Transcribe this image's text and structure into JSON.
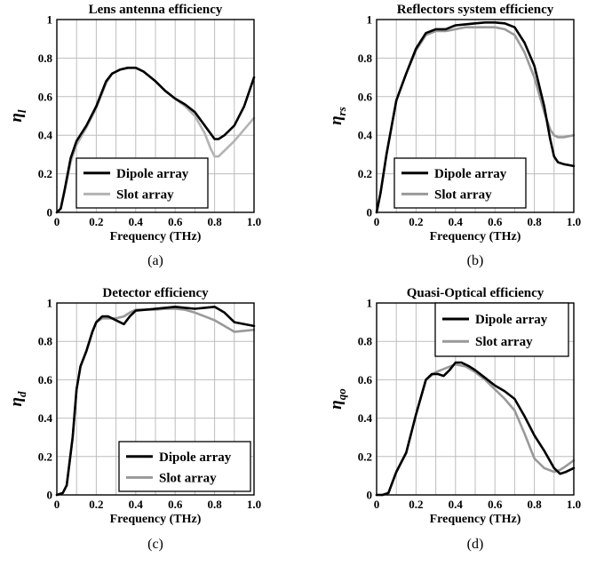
{
  "chart_data": [
    {
      "type": "line",
      "title": "Lens antenna efficiency",
      "xlabel": "Frequency (THz)",
      "ylabel": {
        "base": "η",
        "sub": "l"
      },
      "caption": "(a)",
      "xlim": [
        0,
        1
      ],
      "ylim": [
        0,
        1
      ],
      "xticks": [
        "0",
        "0.2",
        "0.4",
        "0.6",
        "0.8",
        "1.0"
      ],
      "yticks": [
        "0",
        "0.2",
        "0.4",
        "0.6",
        "0.8",
        "1"
      ],
      "grid": true,
      "legend_position": "bottom-left",
      "series": [
        {
          "name": "Dipole array",
          "color": "#000000",
          "x": [
            0,
            0.02,
            0.04,
            0.07,
            0.1,
            0.15,
            0.2,
            0.25,
            0.28,
            0.32,
            0.36,
            0.4,
            0.44,
            0.5,
            0.55,
            0.6,
            0.65,
            0.7,
            0.75,
            0.8,
            0.82,
            0.85,
            0.9,
            0.95,
            1.0
          ],
          "y": [
            0,
            0.02,
            0.12,
            0.28,
            0.37,
            0.45,
            0.55,
            0.68,
            0.72,
            0.74,
            0.75,
            0.75,
            0.73,
            0.68,
            0.63,
            0.59,
            0.56,
            0.52,
            0.45,
            0.38,
            0.38,
            0.4,
            0.45,
            0.55,
            0.7
          ]
        },
        {
          "name": "Slot array",
          "color": "#b3b3b3",
          "x": [
            0,
            0.02,
            0.04,
            0.07,
            0.1,
            0.15,
            0.2,
            0.25,
            0.28,
            0.32,
            0.36,
            0.4,
            0.44,
            0.5,
            0.55,
            0.6,
            0.65,
            0.7,
            0.75,
            0.78,
            0.8,
            0.82,
            0.85,
            0.9,
            0.95,
            1.0
          ],
          "y": [
            0,
            0.02,
            0.11,
            0.26,
            0.35,
            0.44,
            0.54,
            0.67,
            0.72,
            0.74,
            0.75,
            0.75,
            0.73,
            0.68,
            0.63,
            0.59,
            0.55,
            0.5,
            0.41,
            0.33,
            0.29,
            0.29,
            0.32,
            0.37,
            0.43,
            0.49
          ]
        }
      ]
    },
    {
      "type": "line",
      "title": "Reflectors system efficiency",
      "xlabel": "Frequency (THz)",
      "ylabel": {
        "base": "η",
        "sub": "rs"
      },
      "caption": "(b)",
      "xlim": [
        0,
        1
      ],
      "ylim": [
        0,
        1
      ],
      "xticks": [
        "0",
        "0.2",
        "0.4",
        "0.6",
        "0.8",
        "1.0"
      ],
      "yticks": [
        "0",
        "0.2",
        "0.4",
        "0.6",
        "0.8",
        "1"
      ],
      "grid": true,
      "legend_position": "bottom-left",
      "series": [
        {
          "name": "Dipole array",
          "color": "#000000",
          "x": [
            0,
            0.02,
            0.05,
            0.1,
            0.15,
            0.2,
            0.25,
            0.3,
            0.35,
            0.4,
            0.45,
            0.5,
            0.55,
            0.6,
            0.65,
            0.7,
            0.75,
            0.8,
            0.85,
            0.88,
            0.9,
            0.92,
            0.95,
            1.0
          ],
          "y": [
            0,
            0.1,
            0.3,
            0.58,
            0.72,
            0.85,
            0.93,
            0.95,
            0.95,
            0.97,
            0.975,
            0.98,
            0.985,
            0.985,
            0.98,
            0.96,
            0.88,
            0.76,
            0.55,
            0.38,
            0.29,
            0.26,
            0.25,
            0.24
          ]
        },
        {
          "name": "Slot array",
          "color": "#999999",
          "x": [
            0,
            0.02,
            0.05,
            0.1,
            0.15,
            0.2,
            0.25,
            0.3,
            0.35,
            0.4,
            0.45,
            0.5,
            0.55,
            0.6,
            0.65,
            0.7,
            0.75,
            0.8,
            0.85,
            0.88,
            0.9,
            0.92,
            0.95,
            1.0
          ],
          "y": [
            0,
            0.1,
            0.3,
            0.58,
            0.72,
            0.84,
            0.92,
            0.94,
            0.94,
            0.95,
            0.96,
            0.96,
            0.96,
            0.96,
            0.95,
            0.92,
            0.83,
            0.7,
            0.52,
            0.43,
            0.4,
            0.39,
            0.39,
            0.4
          ]
        }
      ]
    },
    {
      "type": "line",
      "title": "Detector efficiency",
      "xlabel": "Frequency (THz)",
      "ylabel": {
        "base": "η",
        "sub": "d"
      },
      "caption": "(c)",
      "xlim": [
        0,
        1
      ],
      "ylim": [
        0,
        1
      ],
      "xticks": [
        "0",
        "0.2",
        "0.4",
        "0.6",
        "0.8",
        "1.0"
      ],
      "yticks": [
        "0",
        "0.2",
        "0.4",
        "0.6",
        "0.8",
        "1"
      ],
      "grid": true,
      "legend_position": "bottom-right",
      "series": [
        {
          "name": "Dipole array",
          "color": "#000000",
          "x": [
            0,
            0.03,
            0.05,
            0.08,
            0.1,
            0.12,
            0.15,
            0.18,
            0.2,
            0.23,
            0.26,
            0.3,
            0.34,
            0.37,
            0.4,
            0.45,
            0.5,
            0.55,
            0.6,
            0.65,
            0.7,
            0.75,
            0.8,
            0.85,
            0.9,
            1.0
          ],
          "y": [
            0,
            0.01,
            0.05,
            0.3,
            0.55,
            0.67,
            0.75,
            0.85,
            0.9,
            0.93,
            0.93,
            0.91,
            0.89,
            0.93,
            0.96,
            0.965,
            0.97,
            0.975,
            0.98,
            0.975,
            0.97,
            0.975,
            0.98,
            0.95,
            0.9,
            0.88
          ]
        },
        {
          "name": "Slot array",
          "color": "#999999",
          "x": [
            0,
            0.03,
            0.05,
            0.08,
            0.1,
            0.12,
            0.15,
            0.18,
            0.2,
            0.23,
            0.26,
            0.3,
            0.34,
            0.37,
            0.4,
            0.45,
            0.5,
            0.55,
            0.6,
            0.65,
            0.7,
            0.75,
            0.8,
            0.85,
            0.9,
            1.0
          ],
          "y": [
            0,
            0.01,
            0.05,
            0.3,
            0.55,
            0.67,
            0.75,
            0.85,
            0.9,
            0.92,
            0.92,
            0.92,
            0.93,
            0.95,
            0.965,
            0.965,
            0.965,
            0.97,
            0.97,
            0.965,
            0.95,
            0.93,
            0.91,
            0.88,
            0.85,
            0.86
          ]
        }
      ]
    },
    {
      "type": "line",
      "title": "Quasi-Optical efficiency",
      "xlabel": "Frequency (THz)",
      "ylabel": {
        "base": "η",
        "sub": "qo"
      },
      "caption": "(d)",
      "xlim": [
        0,
        1
      ],
      "ylim": [
        0,
        1
      ],
      "xticks": [
        "0",
        "0.2",
        "0.4",
        "0.6",
        "0.8",
        "1.0"
      ],
      "yticks": [
        "0",
        "0.2",
        "0.4",
        "0.6",
        "0.8",
        "1"
      ],
      "grid": true,
      "legend_position": "top-right",
      "series": [
        {
          "name": "Dipole array",
          "color": "#000000",
          "x": [
            0,
            0.03,
            0.06,
            0.1,
            0.15,
            0.2,
            0.25,
            0.28,
            0.31,
            0.34,
            0.37,
            0.4,
            0.43,
            0.47,
            0.5,
            0.55,
            0.6,
            0.65,
            0.7,
            0.75,
            0.8,
            0.85,
            0.9,
            0.93,
            0.96,
            1.0
          ],
          "y": [
            0,
            0,
            0.01,
            0.12,
            0.22,
            0.42,
            0.6,
            0.63,
            0.63,
            0.62,
            0.65,
            0.69,
            0.69,
            0.67,
            0.65,
            0.61,
            0.57,
            0.54,
            0.5,
            0.41,
            0.31,
            0.23,
            0.14,
            0.11,
            0.12,
            0.14
          ]
        },
        {
          "name": "Slot array",
          "color": "#999999",
          "x": [
            0,
            0.03,
            0.06,
            0.1,
            0.15,
            0.2,
            0.25,
            0.3,
            0.35,
            0.4,
            0.45,
            0.5,
            0.55,
            0.6,
            0.65,
            0.7,
            0.75,
            0.8,
            0.85,
            0.9,
            0.93,
            0.96,
            1.0
          ],
          "y": [
            0,
            0,
            0.01,
            0.12,
            0.22,
            0.42,
            0.6,
            0.64,
            0.66,
            0.68,
            0.67,
            0.64,
            0.6,
            0.55,
            0.5,
            0.44,
            0.32,
            0.19,
            0.14,
            0.12,
            0.13,
            0.15,
            0.18
          ]
        }
      ]
    }
  ]
}
